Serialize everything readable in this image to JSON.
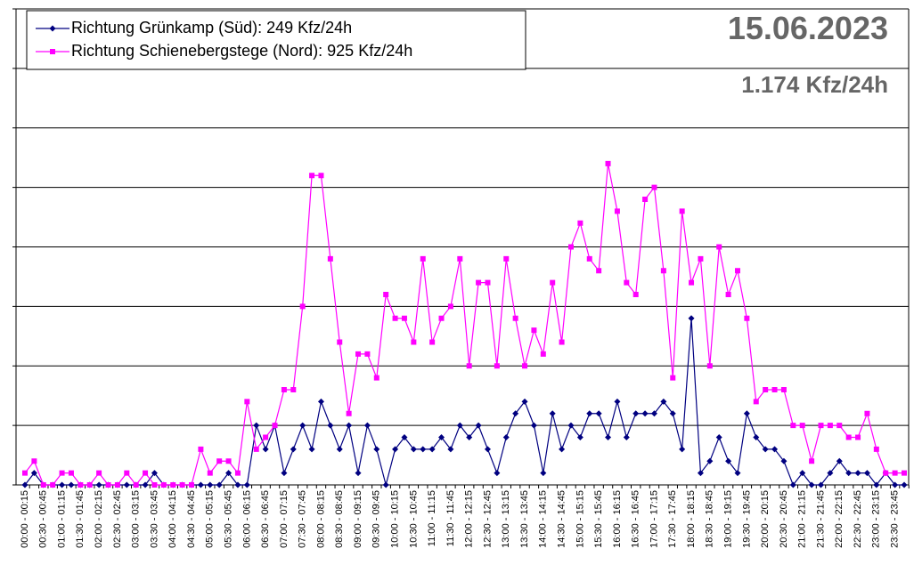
{
  "chart_data": {
    "type": "line",
    "title": "15.06.2023",
    "subtitle": "1.174 Kfz/24h",
    "categories": [
      "00:00 - 00:15",
      null,
      "00:30 - 00:45",
      null,
      "01:00 - 01:15",
      null,
      "01:30 - 01:45",
      null,
      "02:00 - 02:15",
      null,
      "02:30 - 02:45",
      null,
      "03:00 - 03:15",
      null,
      "03:30 - 03:45",
      null,
      "04:00 - 04:15",
      null,
      "04:30 - 04:45",
      null,
      "05:00 - 05:15",
      null,
      "05:30 - 05:45",
      null,
      "06:00 - 06:15",
      null,
      "06:30 - 06:45",
      null,
      "07:00 - 07:15",
      null,
      "07:30 - 07:45",
      null,
      "08:00 - 08:15",
      null,
      "08:30 - 08:45",
      null,
      "09:00 - 09:15",
      null,
      "09:30 - 09:45",
      null,
      "10:00 - 10:15",
      null,
      "10:30 - 10:45",
      null,
      "11:00 - 11:15",
      null,
      "11:30 - 11:45",
      null,
      "12:00 - 12:15",
      null,
      "12:30 - 12:45",
      null,
      "13:00 - 13:15",
      null,
      "13:30 - 13:45",
      null,
      "14:00 - 14:15",
      null,
      "14:30 - 14:45",
      null,
      "15:00 - 15:15",
      null,
      "15:30 - 15:45",
      null,
      "16:00 - 16:15",
      null,
      "16:30 - 16:45",
      null,
      "17:00 - 17:15",
      null,
      "17:30 - 17:45",
      null,
      "18:00 - 18:15",
      null,
      "18:30 - 18:45",
      null,
      "19:00 - 19:15",
      null,
      "19:30 - 19:45",
      null,
      "20:00 - 20:15",
      null,
      "20:30 - 20:45",
      null,
      "21:00 - 21:15",
      null,
      "21:30 - 21:45",
      null,
      "22:00 - 22:15",
      null,
      "22:30 - 22:45",
      null,
      "23:00 - 23:15",
      null,
      "23:30 - 23:45",
      null
    ],
    "series": [
      {
        "name": "Richtung Grünkamp (Süd): 249 Kfz/24h",
        "color": "#000080",
        "marker": "diamond",
        "values": [
          0,
          1,
          0,
          0,
          0,
          0,
          0,
          0,
          0,
          0,
          0,
          0,
          0,
          0,
          1,
          0,
          0,
          0,
          0,
          0,
          0,
          0,
          1,
          0,
          0,
          5,
          3,
          5,
          1,
          3,
          5,
          3,
          7,
          5,
          3,
          5,
          1,
          5,
          3,
          0,
          3,
          4,
          3,
          3,
          3,
          4,
          3,
          5,
          4,
          5,
          3,
          1,
          4,
          6,
          7,
          5,
          1,
          6,
          3,
          5,
          4,
          6,
          6,
          4,
          7,
          4,
          6,
          6,
          6,
          7,
          6,
          3,
          14,
          1,
          2,
          4,
          2,
          1,
          6,
          4,
          3,
          3,
          2,
          0,
          1,
          0,
          0,
          1,
          2,
          1,
          1,
          1,
          0,
          1,
          0,
          0
        ]
      },
      {
        "name": "Richtung Schienebergstege (Nord): 925 Kfz/24h",
        "color": "#ff00ff",
        "marker": "square",
        "values": [
          1,
          2,
          0,
          0,
          1,
          1,
          0,
          0,
          1,
          0,
          0,
          1,
          0,
          1,
          0,
          0,
          0,
          0,
          0,
          3,
          1,
          2,
          2,
          1,
          7,
          3,
          4,
          5,
          8,
          8,
          15,
          26,
          26,
          19,
          12,
          6,
          11,
          11,
          9,
          16,
          14,
          14,
          12,
          19,
          12,
          14,
          15,
          19,
          10,
          17,
          17,
          10,
          19,
          14,
          10,
          13,
          11,
          17,
          12,
          20,
          22,
          19,
          18,
          27,
          23,
          17,
          16,
          24,
          25,
          18,
          9,
          23,
          17,
          19,
          10,
          20,
          16,
          18,
          14,
          7,
          8,
          8,
          8,
          5,
          5,
          2,
          5,
          5,
          5,
          4,
          4,
          6,
          3,
          1,
          1,
          1
        ]
      }
    ],
    "ylim": [
      0,
      40
    ],
    "yticks": [
      0,
      5,
      10,
      15,
      20,
      25,
      30,
      35,
      40
    ],
    "grid": true,
    "legend": "top-left"
  }
}
